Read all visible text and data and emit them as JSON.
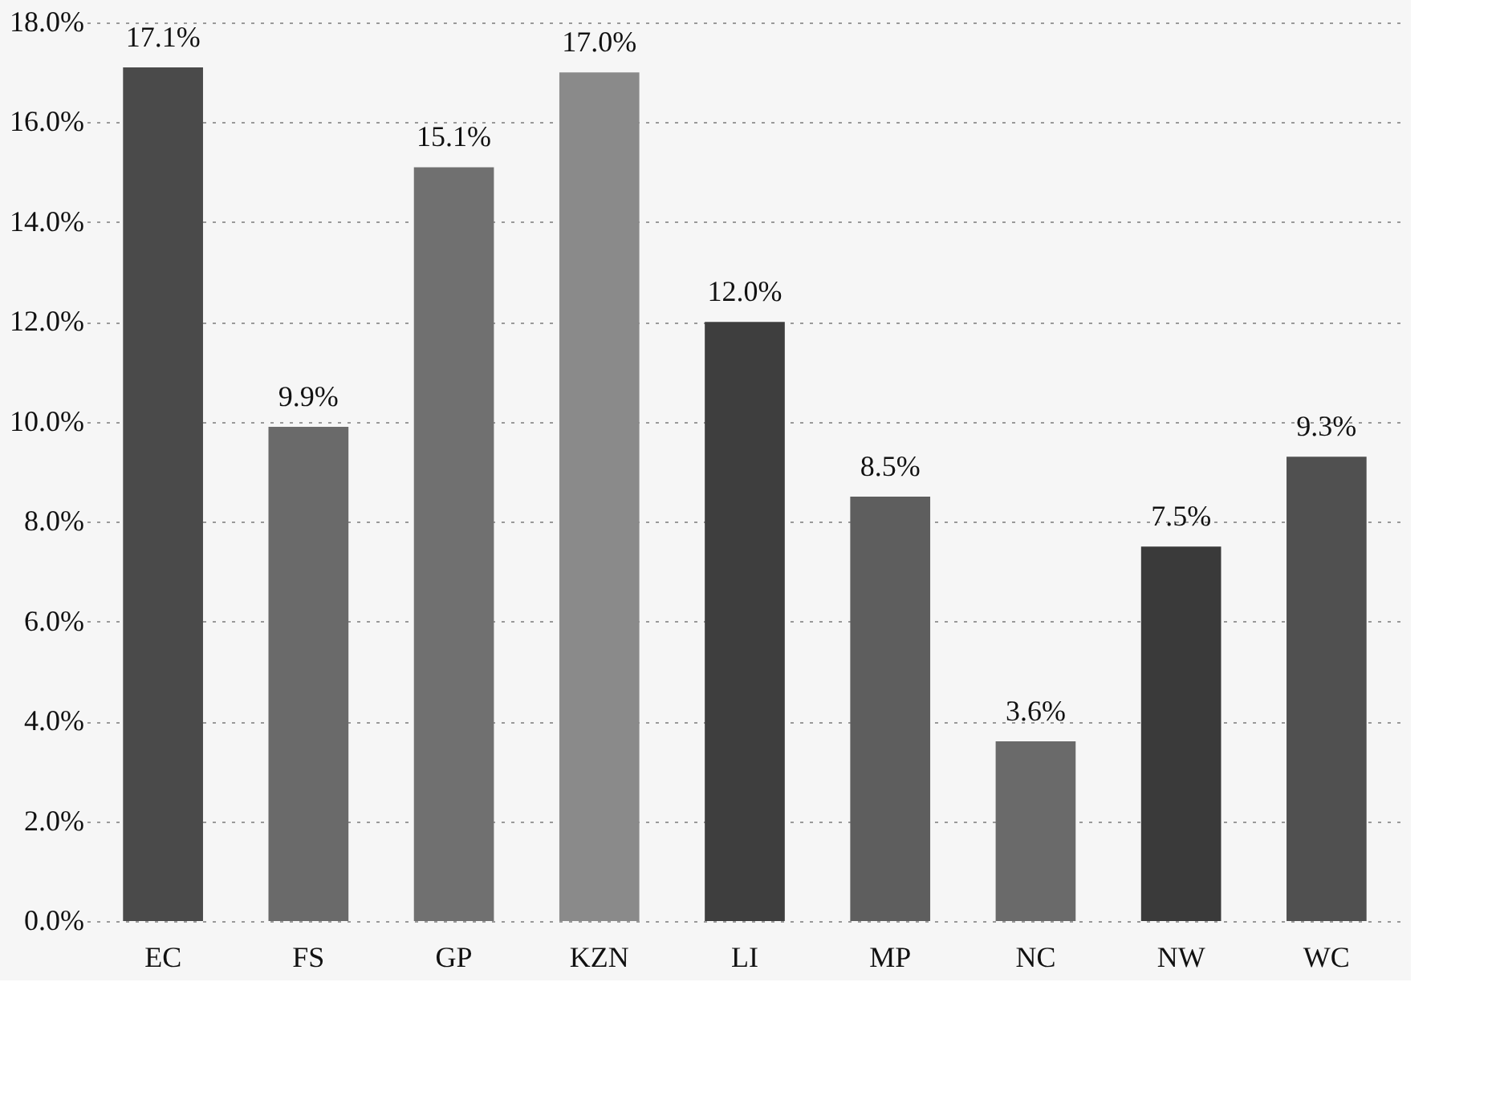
{
  "chart_data": {
    "type": "bar",
    "categories": [
      "EC",
      "FS",
      "GP",
      "KZN",
      "LI",
      "MP",
      "NC",
      "NW",
      "WC"
    ],
    "values": [
      17.1,
      9.9,
      15.1,
      17.0,
      12.0,
      8.5,
      3.6,
      7.5,
      9.3
    ],
    "value_labels": [
      "17.1%",
      "9.9%",
      "15.1%",
      "17.0%",
      "12.0%",
      "8.5%",
      "3.6%",
      "7.5%",
      "9.3%"
    ],
    "colors": [
      "#4a4a4a",
      "#6a6a6a",
      "#707070",
      "#8a8a8a",
      "#3e3e3e",
      "#5e5e5e",
      "#6a6a6a",
      "#3a3a3a",
      "#505050"
    ],
    "ylim": [
      0,
      18
    ],
    "yticks": [
      {
        "value": 0,
        "label": "0.0%"
      },
      {
        "value": 2,
        "label": "2.0%"
      },
      {
        "value": 4,
        "label": "4.0%"
      },
      {
        "value": 6,
        "label": "6.0%"
      },
      {
        "value": 8,
        "label": "8.0%"
      },
      {
        "value": 10,
        "label": "10.0%"
      },
      {
        "value": 12,
        "label": "12.0%"
      },
      {
        "value": 14,
        "label": "14.0%"
      },
      {
        "value": 16,
        "label": "16.0%"
      },
      {
        "value": 18,
        "label": "18.0%"
      }
    ],
    "grid": "y"
  }
}
